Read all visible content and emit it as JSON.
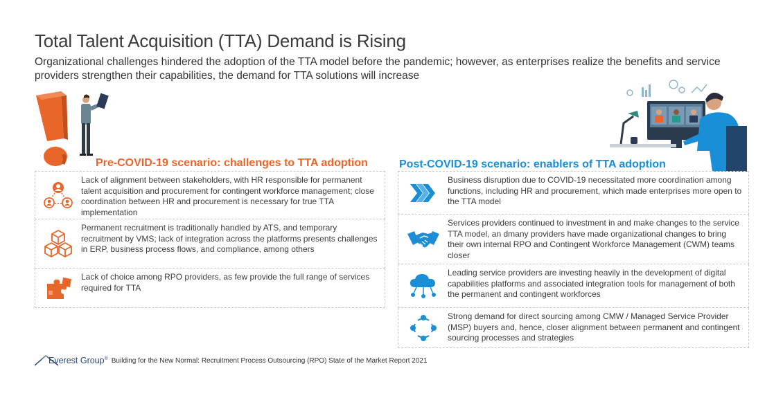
{
  "header": {
    "title": "Total Talent Acquisition (TTA) Demand is Rising",
    "subtitle": "Organizational challenges hindered the adoption of the TTA model before the pandemic; however, as enterprises realize the benefits and service providers strengthen their capabilities, the demand for TTA solutions will increase"
  },
  "pre_covid": {
    "heading": "Pre-COVID-19 scenario: challenges to TTA adoption",
    "items": [
      {
        "icon": "people-network-icon",
        "text": "Lack of alignment between stakeholders, with HR responsible for permanent talent acquisition and procurement for contingent workforce management; close coordination between HR and procurement is necessary for true TTA implementation"
      },
      {
        "icon": "stacked-boxes-icon",
        "text": "Permanent recruitment is traditionally handled by ATS, and temporary recruitment by VMS; lack of integration across the platforms presents challenges in ERP, business process flows, and compliance, among others"
      },
      {
        "icon": "puzzle-icon",
        "text": "Lack of choice among RPO providers, as few provide the full range of services required for TTA"
      }
    ]
  },
  "post_covid": {
    "heading": "Post-COVID-19 scenario: enablers of TTA adoption",
    "items": [
      {
        "icon": "chevrons-right-icon",
        "text": "Business disruption due to COVID-19 necessitated more coordination among functions, including HR and procurement, which made enterprises more open to the TTA model"
      },
      {
        "icon": "handshake-icon",
        "text": "Services providers continued to investment in and make changes to the service TTA model, an dmany providers have made organizational changes to bring their own internal RPO and Contingent Workforce Management (CWM) teams closer"
      },
      {
        "icon": "cloud-network-icon",
        "text": "Leading service providers are investing heavily in the development of digital capabilities platforms and associated integration tools for management of both the permanent and contingent workforces"
      },
      {
        "icon": "cycle-arrows-icon",
        "text": "Strong demand for direct sourcing among CMW / Managed Service Provider (MSP) buyers and, hence, closer alignment between permanent and contingent sourcing processes and strategies"
      }
    ]
  },
  "footer": {
    "brand": "Everest Group",
    "registered": "®",
    "citation": "Building for the New Normal: Recruitment Process Outsourcing (RPO) State of the Market Report 2021"
  },
  "colors": {
    "orange": "#e8662a",
    "blue": "#1a8ed6",
    "text": "#3b3b3b"
  }
}
